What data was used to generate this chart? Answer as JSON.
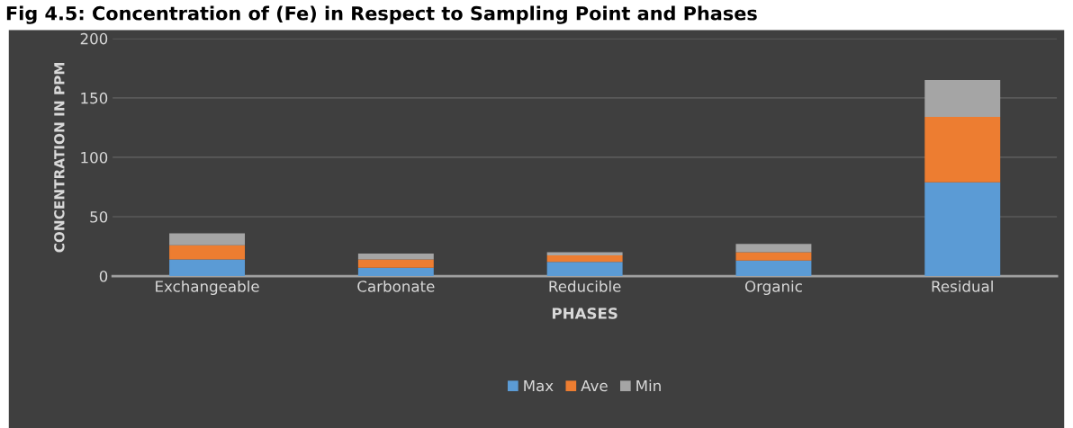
{
  "chart_data": {
    "type": "bar",
    "title": "Fig 4.5: Concentration of (Fe) in Respect to Sampling Point and Phases",
    "xlabel": "PHASES",
    "ylabel": "CONCENTRATION IN PPM",
    "categories": [
      "Exchangeable",
      "Carbonate",
      "Reducible",
      "Organic",
      "Residual"
    ],
    "series": [
      {
        "name": "Max",
        "color": "#5b9bd5",
        "values": [
          14,
          7,
          12,
          13,
          79
        ]
      },
      {
        "name": "Ave",
        "color": "#ed7d31",
        "values": [
          12,
          7,
          5.5,
          7,
          55
        ]
      },
      {
        "name": "Min",
        "color": "#a5a5a5",
        "values": [
          10,
          5,
          2.5,
          7,
          31
        ]
      }
    ],
    "stacked": true,
    "ylim": [
      0,
      200
    ],
    "yticks": [
      0,
      50,
      100,
      150,
      200
    ],
    "grid": "y",
    "legend": "bottom"
  }
}
